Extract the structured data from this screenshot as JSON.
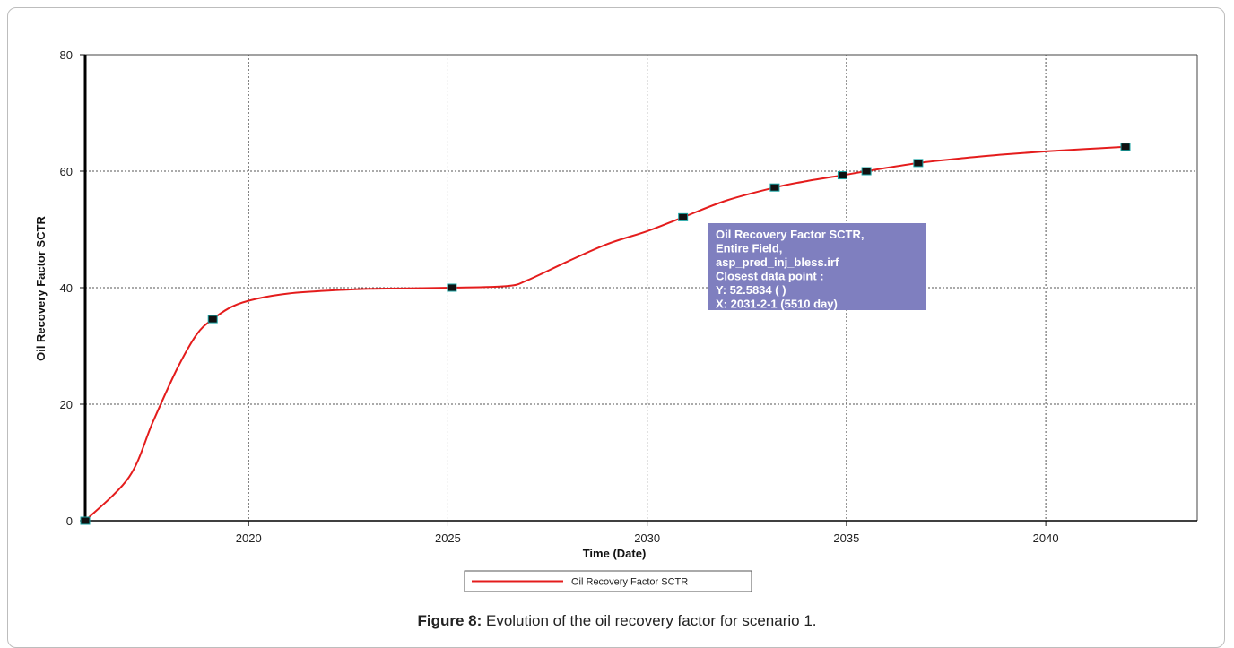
{
  "chart_data": {
    "type": "line",
    "xlabel": "Time (Date)",
    "ylabel": "Oil Recovery Factor SCTR",
    "xlim": [
      2015.9,
      2043.8
    ],
    "ylim": [
      0,
      80
    ],
    "x_ticks": [
      "2020",
      "2025",
      "2030",
      "2035",
      "2040"
    ],
    "y_ticks": [
      "0",
      "20",
      "40",
      "60",
      "80"
    ],
    "grid": true,
    "legend_position": "bottom-center",
    "series": [
      {
        "name": "Oil Recovery Factor SCTR",
        "color": "#e41c1c",
        "line": [
          [
            2015.9,
            0
          ],
          [
            2017.0,
            7.5
          ],
          [
            2017.6,
            17
          ],
          [
            2018.2,
            26
          ],
          [
            2018.7,
            32
          ],
          [
            2019.1,
            34.6
          ],
          [
            2019.6,
            36.8
          ],
          [
            2020.2,
            38.1
          ],
          [
            2021.0,
            39.0
          ],
          [
            2022.0,
            39.5
          ],
          [
            2023.0,
            39.8
          ],
          [
            2024.0,
            39.9
          ],
          [
            2025.1,
            40.0
          ],
          [
            2026.5,
            40.3
          ],
          [
            2027.0,
            41.3
          ],
          [
            2028.0,
            44.5
          ],
          [
            2029.0,
            47.5
          ],
          [
            2030.0,
            49.7
          ],
          [
            2030.9,
            52.1
          ],
          [
            2032.0,
            55.0
          ],
          [
            2033.2,
            57.2
          ],
          [
            2034.0,
            58.3
          ],
          [
            2034.9,
            59.3
          ],
          [
            2035.5,
            60.0
          ],
          [
            2036.8,
            61.4
          ],
          [
            2038.0,
            62.3
          ],
          [
            2039.0,
            62.9
          ],
          [
            2040.0,
            63.4
          ],
          [
            2041.0,
            63.8
          ],
          [
            2042.0,
            64.2
          ]
        ],
        "markers": [
          [
            2015.9,
            0
          ],
          [
            2019.1,
            34.6
          ],
          [
            2025.1,
            40.0
          ],
          [
            2030.9,
            52.1
          ],
          [
            2033.2,
            57.2
          ],
          [
            2034.9,
            59.3
          ],
          [
            2035.5,
            60.0
          ],
          [
            2036.8,
            61.4
          ],
          [
            2042.0,
            64.2
          ]
        ]
      }
    ],
    "tooltip": {
      "lines": [
        "Oil Recovery Factor SCTR,",
        "Entire  Field,",
        "asp_pred_inj_bless.irf",
        "Closest data point :",
        "Y: 52.5834 ( )",
        "X:  2031-2-1 (5510 day)"
      ],
      "background": "#7f7fbf"
    }
  },
  "caption": {
    "label": "Figure 8:",
    "text": " Evolution of the oil recovery factor for scenario 1."
  }
}
